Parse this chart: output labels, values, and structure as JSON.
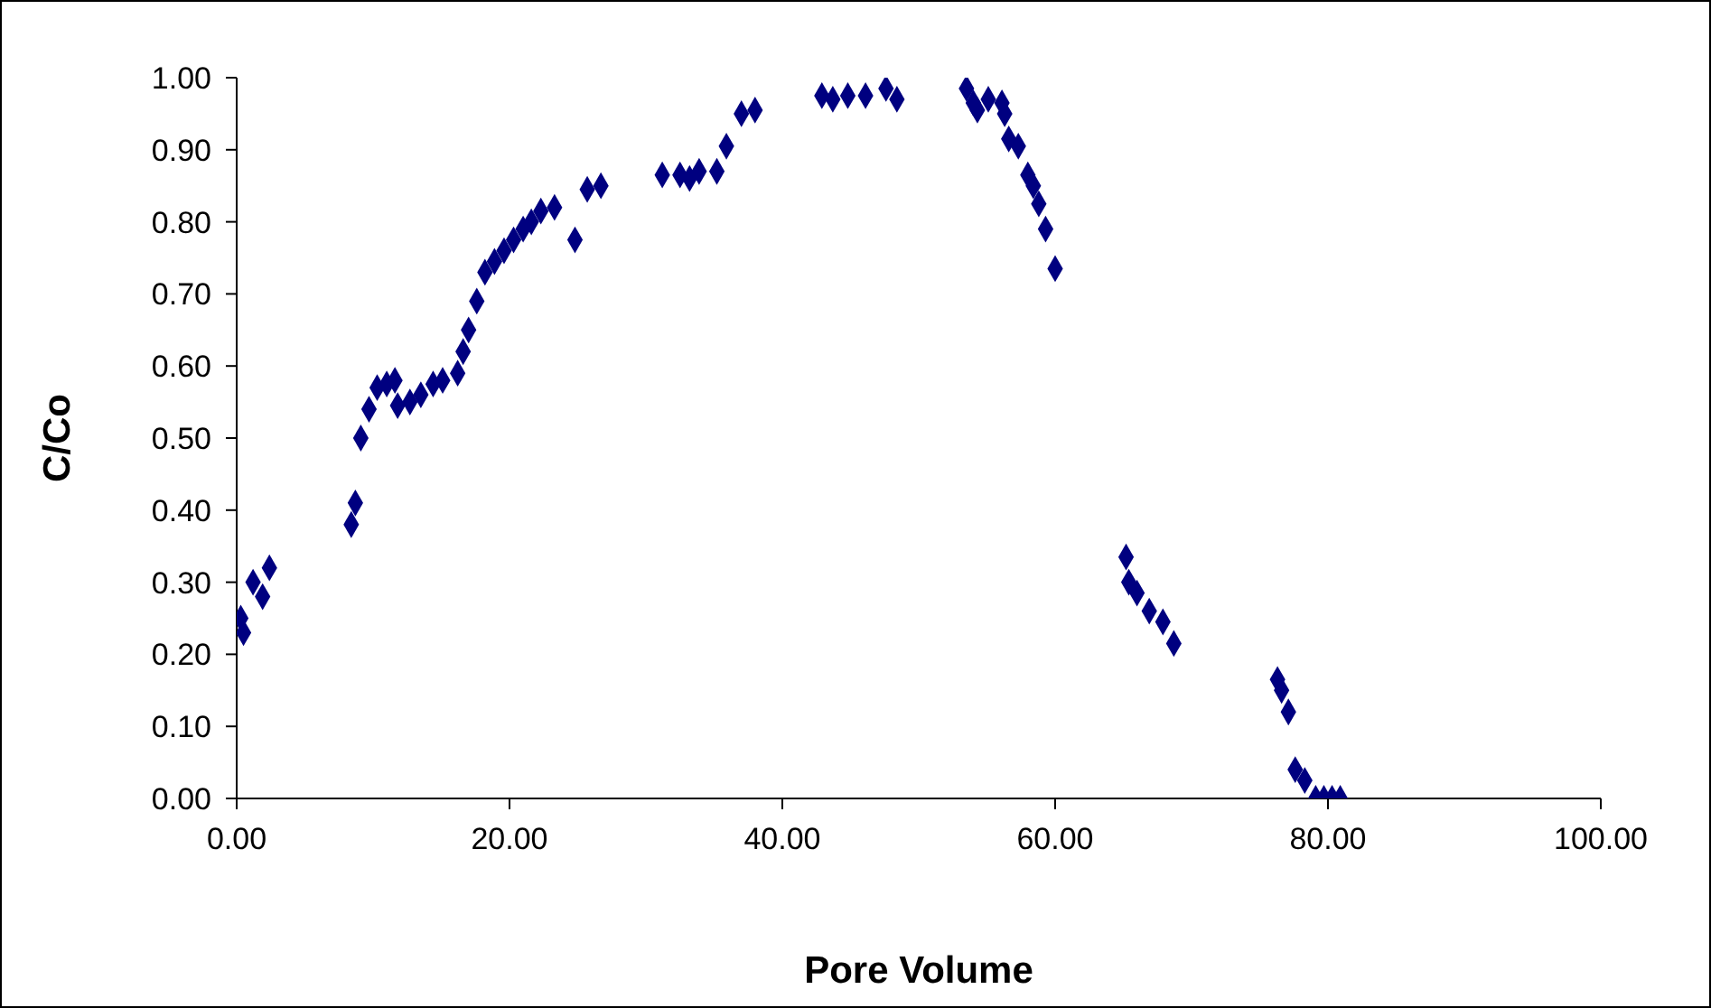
{
  "chart_data": {
    "type": "scatter",
    "xlabel": "Pore Volume",
    "ylabel": "C/Co",
    "marker": "diamond",
    "xlim": [
      0,
      100
    ],
    "xticks": [
      {
        "value": 0,
        "label": "0.00"
      },
      {
        "value": 20,
        "label": "20.00"
      },
      {
        "value": 40,
        "label": "40.00"
      },
      {
        "value": 60,
        "label": "60.00"
      },
      {
        "value": 80,
        "label": "80.00"
      },
      {
        "value": 100,
        "label": "100.00"
      }
    ],
    "ylim": [
      0,
      1
    ],
    "yticks": [
      {
        "value": 0,
        "label": "0.00"
      },
      {
        "value": 0.1,
        "label": "0.10"
      },
      {
        "value": 0.2,
        "label": "0.20"
      },
      {
        "value": 0.3,
        "label": "0.30"
      },
      {
        "value": 0.4,
        "label": "0.40"
      },
      {
        "value": 0.5,
        "label": "0.50"
      },
      {
        "value": 0.6,
        "label": "0.60"
      },
      {
        "value": 0.7,
        "label": "0.70"
      },
      {
        "value": 0.8,
        "label": "0.80"
      },
      {
        "value": 0.9,
        "label": "0.90"
      },
      {
        "value": 1,
        "label": "1.00"
      }
    ],
    "grid": false,
    "legend": false,
    "series": [
      {
        "color": "#000080",
        "x": [
          0.3,
          0.5,
          1.2,
          1.9,
          2.4,
          8.4,
          8.7,
          9.1,
          9.7,
          10.3,
          11,
          11.6,
          11.8,
          12.7,
          13.5,
          14.4,
          15.1,
          16.2,
          16.6,
          17,
          17.6,
          18.2,
          18.9,
          19.6,
          20.3,
          21,
          21.6,
          22.3,
          23.3,
          24.8,
          25.7,
          26.7,
          31.2,
          32.5,
          33.2,
          33.9,
          35.2,
          35.9,
          37,
          38,
          42.9,
          43.7,
          44.8,
          46.1,
          47.6,
          48.4,
          53.5,
          54,
          54.3,
          55.1,
          56.1,
          56.3,
          56.6,
          57.3,
          58,
          58.4,
          58.8,
          59.3,
          60,
          65.2,
          65.4,
          66,
          66.9,
          67.9,
          68.7,
          76.3,
          76.6,
          77.1,
          77.6,
          78.3,
          79.1,
          79.7,
          80.3,
          80.9
        ],
        "values": [
          0.25,
          0.23,
          0.3,
          0.28,
          0.32,
          0.38,
          0.41,
          0.5,
          0.54,
          0.57,
          0.575,
          0.58,
          0.545,
          0.55,
          0.56,
          0.575,
          0.58,
          0.59,
          0.62,
          0.65,
          0.69,
          0.73,
          0.745,
          0.76,
          0.775,
          0.79,
          0.8,
          0.815,
          0.82,
          0.775,
          0.845,
          0.85,
          0.865,
          0.865,
          0.86,
          0.87,
          0.87,
          0.905,
          0.95,
          0.955,
          0.975,
          0.97,
          0.975,
          0.975,
          0.985,
          0.97,
          0.985,
          0.965,
          0.955,
          0.97,
          0.965,
          0.95,
          0.915,
          0.905,
          0.865,
          0.85,
          0.825,
          0.79,
          0.735,
          0.335,
          0.3,
          0.285,
          0.26,
          0.245,
          0.215,
          0.165,
          0.15,
          0.12,
          0.04,
          0.025,
          0,
          0,
          0,
          0
        ]
      }
    ]
  }
}
